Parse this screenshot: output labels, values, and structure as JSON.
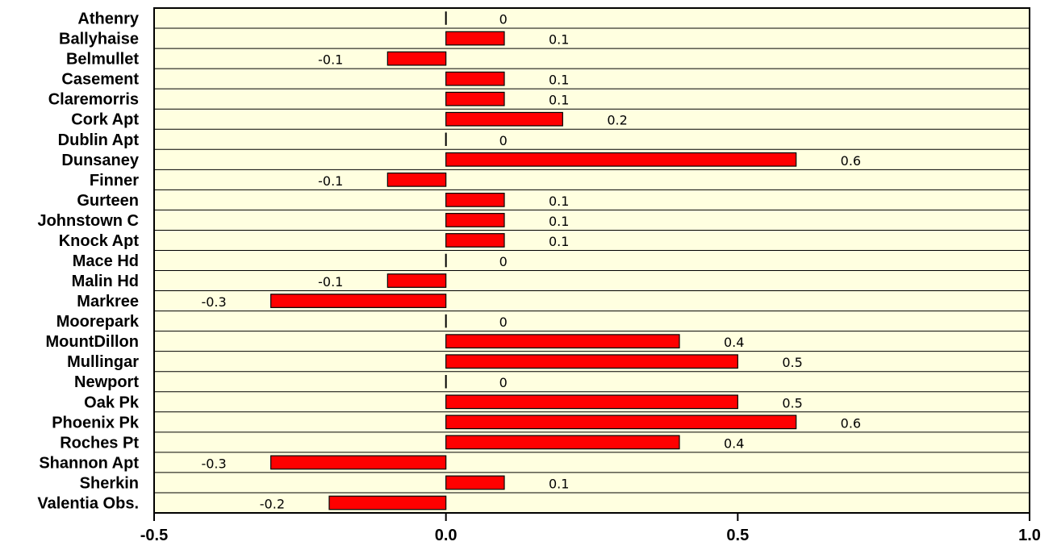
{
  "chart_data": {
    "type": "bar",
    "orientation": "horizontal",
    "categories": [
      "Athenry",
      "Ballyhaise",
      "Belmullet",
      "Casement",
      "Claremorris",
      "Cork Apt",
      "Dublin Apt",
      "Dunsaney",
      "Finner",
      "Gurteen",
      "Johnstown C",
      "Knock Apt",
      "Mace Hd",
      "Malin Hd",
      "Markree",
      "Moorepark",
      "MountDillon",
      "Mullingar",
      "Newport",
      "Oak Pk",
      "Phoenix Pk",
      "Roches Pt",
      "Shannon Apt",
      "Sherkin",
      "Valentia Obs."
    ],
    "values": [
      0,
      0.1,
      -0.1,
      0.1,
      0.1,
      0.2,
      0,
      0.6,
      -0.1,
      0.1,
      0.1,
      0.1,
      0,
      -0.1,
      -0.3,
      0,
      0.4,
      0.5,
      0,
      0.5,
      0.6,
      0.4,
      -0.3,
      0.1,
      -0.2
    ],
    "value_labels": [
      "0",
      "0.1",
      "-0.1",
      "0.1",
      "0.1",
      "0.2",
      "0",
      "0.6",
      "-0.1",
      "0.1",
      "0.1",
      "0.1",
      "0",
      "-0.1",
      "-0.3",
      "0",
      "0.4",
      "0.5",
      "0",
      "0.5",
      "0.6",
      "0.4",
      "-0.3",
      "0.1",
      "-0.2"
    ],
    "xlim": [
      -0.5,
      1.0
    ],
    "x_ticks": [
      -0.5,
      0.0,
      0.5,
      1.0
    ],
    "x_tick_labels": [
      "-0.5",
      "0.0",
      "0.5",
      "1.0"
    ],
    "title": "",
    "xlabel": "",
    "ylabel": "",
    "grid": "horizontal row separators",
    "legend": "none",
    "colors": {
      "bar": "#ff0000",
      "plot_background": "#ffffe0",
      "axis": "#000000"
    }
  }
}
